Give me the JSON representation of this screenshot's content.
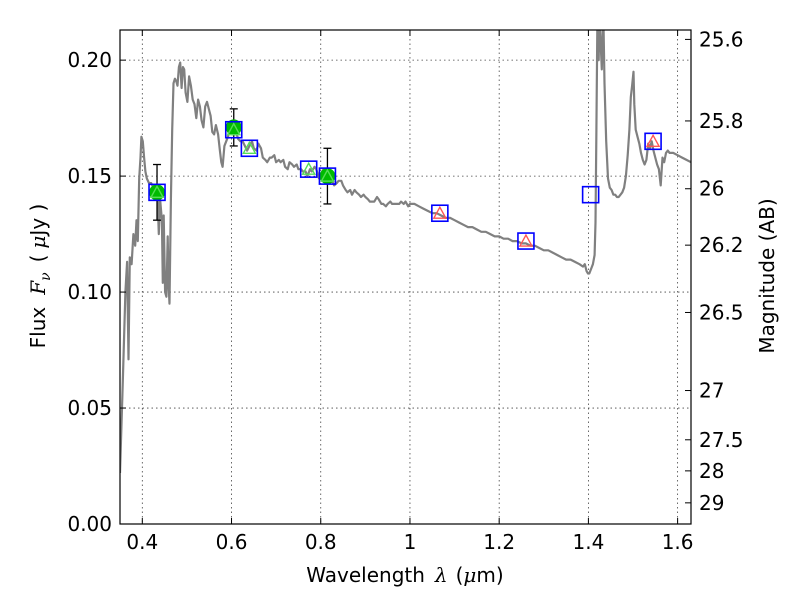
{
  "chart_data": {
    "type": "line",
    "xlabel_prefix": "Wavelength",
    "xlabel_symbol": "λ",
    "xlabel_unit_open": "(",
    "xlabel_unit_mu": "μ",
    "xlabel_unit_rest": "m)",
    "ylabel_prefix": "Flux",
    "ylabel_symbol": "F",
    "ylabel_subscript": "ν",
    "ylabel_unit_open": "(",
    "ylabel_unit_mu": "μ",
    "ylabel_unit_rest": "Jy )",
    "y2label": "Magnitude (AB)",
    "xlim": [
      0.35,
      1.63
    ],
    "ylim": [
      0.0,
      0.213
    ],
    "grid": true,
    "x_ticks": [
      {
        "value": 0.4,
        "label": "0.4"
      },
      {
        "value": 0.6,
        "label": "0.6"
      },
      {
        "value": 0.8,
        "label": "0.8"
      },
      {
        "value": 1.0,
        "label": "1"
      },
      {
        "value": 1.2,
        "label": "1.2"
      },
      {
        "value": 1.4,
        "label": "1.4"
      },
      {
        "value": 1.6,
        "label": "1.6"
      }
    ],
    "y_ticks": [
      {
        "value": 0.0,
        "label": "0.00"
      },
      {
        "value": 0.05,
        "label": "0.05"
      },
      {
        "value": 0.1,
        "label": "0.10"
      },
      {
        "value": 0.15,
        "label": "0.15"
      },
      {
        "value": 0.2,
        "label": "0.20"
      }
    ],
    "y2_ticks": [
      {
        "value": 25.6,
        "label": "25.6"
      },
      {
        "value": 25.8,
        "label": "25.8"
      },
      {
        "value": 26.0,
        "label": "26"
      },
      {
        "value": 26.2,
        "label": "26.2"
      },
      {
        "value": 26.5,
        "label": "26.5"
      },
      {
        "value": 27.0,
        "label": "27"
      },
      {
        "value": 27.5,
        "label": "27.5"
      },
      {
        "value": 28.0,
        "label": "28"
      },
      {
        "value": 29.0,
        "label": "29"
      }
    ],
    "colors": {
      "sed_line": "#808080",
      "observed": "#00bb00",
      "model_square": "#0000ff",
      "model_triangle_optical": "#55dd55",
      "model_triangle_nir": "#ff5555",
      "errorbar": "#000000",
      "grid": "#444444"
    },
    "sed": [
      [
        0.35,
        0.022
      ],
      [
        0.356,
        0.06
      ],
      [
        0.362,
        0.1
      ],
      [
        0.366,
        0.113
      ],
      [
        0.369,
        0.071
      ],
      [
        0.372,
        0.115
      ],
      [
        0.376,
        0.112
      ],
      [
        0.38,
        0.125
      ],
      [
        0.384,
        0.12
      ],
      [
        0.387,
        0.131
      ],
      [
        0.39,
        0.122
      ],
      [
        0.393,
        0.149
      ],
      [
        0.396,
        0.158
      ],
      [
        0.398,
        0.167
      ],
      [
        0.401,
        0.165
      ],
      [
        0.404,
        0.158
      ],
      [
        0.407,
        0.152
      ],
      [
        0.41,
        0.149
      ],
      [
        0.415,
        0.147
      ],
      [
        0.42,
        0.147
      ],
      [
        0.425,
        0.145
      ],
      [
        0.43,
        0.144
      ],
      [
        0.434,
        0.142
      ],
      [
        0.437,
        0.125
      ],
      [
        0.44,
        0.14
      ],
      [
        0.444,
        0.131
      ],
      [
        0.446,
        0.104
      ],
      [
        0.448,
        0.133
      ],
      [
        0.451,
        0.1
      ],
      [
        0.454,
        0.098
      ],
      [
        0.457,
        0.124
      ],
      [
        0.459,
        0.103
      ],
      [
        0.461,
        0.095
      ],
      [
        0.464,
        0.14
      ],
      [
        0.467,
        0.17
      ],
      [
        0.47,
        0.19
      ],
      [
        0.473,
        0.192
      ],
      [
        0.476,
        0.191
      ],
      [
        0.479,
        0.189
      ],
      [
        0.482,
        0.197
      ],
      [
        0.485,
        0.199
      ],
      [
        0.488,
        0.188
      ],
      [
        0.491,
        0.197
      ],
      [
        0.494,
        0.196
      ],
      [
        0.497,
        0.186
      ],
      [
        0.501,
        0.182
      ],
      [
        0.505,
        0.193
      ],
      [
        0.509,
        0.189
      ],
      [
        0.513,
        0.183
      ],
      [
        0.517,
        0.181
      ],
      [
        0.521,
        0.175
      ],
      [
        0.525,
        0.183
      ],
      [
        0.529,
        0.18
      ],
      [
        0.533,
        0.174
      ],
      [
        0.537,
        0.171
      ],
      [
        0.541,
        0.18
      ],
      [
        0.545,
        0.182
      ],
      [
        0.549,
        0.179
      ],
      [
        0.553,
        0.176
      ],
      [
        0.557,
        0.169
      ],
      [
        0.561,
        0.168
      ],
      [
        0.565,
        0.172
      ],
      [
        0.57,
        0.168
      ],
      [
        0.574,
        0.161
      ],
      [
        0.577,
        0.156
      ],
      [
        0.58,
        0.154
      ],
      [
        0.584,
        0.163
      ],
      [
        0.588,
        0.165
      ],
      [
        0.592,
        0.167
      ],
      [
        0.596,
        0.171
      ],
      [
        0.6,
        0.171
      ],
      [
        0.605,
        0.171
      ],
      [
        0.61,
        0.169
      ],
      [
        0.615,
        0.166
      ],
      [
        0.62,
        0.165
      ],
      [
        0.625,
        0.165
      ],
      [
        0.63,
        0.163
      ],
      [
        0.635,
        0.161
      ],
      [
        0.64,
        0.163
      ],
      [
        0.646,
        0.165
      ],
      [
        0.65,
        0.162
      ],
      [
        0.656,
        0.161
      ],
      [
        0.66,
        0.164
      ],
      [
        0.666,
        0.162
      ],
      [
        0.67,
        0.158
      ],
      [
        0.676,
        0.157
      ],
      [
        0.68,
        0.156
      ],
      [
        0.686,
        0.158
      ],
      [
        0.69,
        0.158
      ],
      [
        0.696,
        0.159
      ],
      [
        0.7,
        0.156
      ],
      [
        0.706,
        0.157
      ],
      [
        0.71,
        0.156
      ],
      [
        0.716,
        0.157
      ],
      [
        0.72,
        0.154
      ],
      [
        0.726,
        0.153
      ],
      [
        0.73,
        0.156
      ],
      [
        0.736,
        0.155
      ],
      [
        0.74,
        0.154
      ],
      [
        0.746,
        0.155
      ],
      [
        0.75,
        0.153
      ],
      [
        0.756,
        0.153
      ],
      [
        0.76,
        0.152
      ],
      [
        0.766,
        0.152
      ],
      [
        0.77,
        0.15
      ],
      [
        0.776,
        0.153
      ],
      [
        0.78,
        0.152
      ],
      [
        0.786,
        0.154
      ],
      [
        0.79,
        0.153
      ],
      [
        0.796,
        0.149
      ],
      [
        0.8,
        0.15
      ],
      [
        0.806,
        0.153
      ],
      [
        0.81,
        0.15
      ],
      [
        0.816,
        0.147
      ],
      [
        0.82,
        0.148
      ],
      [
        0.826,
        0.148
      ],
      [
        0.83,
        0.146
      ],
      [
        0.836,
        0.147
      ],
      [
        0.84,
        0.148
      ],
      [
        0.846,
        0.148
      ],
      [
        0.85,
        0.146
      ],
      [
        0.856,
        0.144
      ],
      [
        0.86,
        0.143
      ],
      [
        0.866,
        0.144
      ],
      [
        0.87,
        0.142
      ],
      [
        0.876,
        0.144
      ],
      [
        0.88,
        0.143
      ],
      [
        0.886,
        0.142
      ],
      [
        0.89,
        0.141
      ],
      [
        0.896,
        0.142
      ],
      [
        0.9,
        0.141
      ],
      [
        0.906,
        0.14
      ],
      [
        0.91,
        0.139
      ],
      [
        0.916,
        0.139
      ],
      [
        0.92,
        0.139
      ],
      [
        0.926,
        0.141
      ],
      [
        0.93,
        0.14
      ],
      [
        0.936,
        0.138
      ],
      [
        0.94,
        0.138
      ],
      [
        0.946,
        0.137
      ],
      [
        0.95,
        0.138
      ],
      [
        0.956,
        0.139
      ],
      [
        0.96,
        0.138
      ],
      [
        0.966,
        0.138
      ],
      [
        0.97,
        0.138
      ],
      [
        0.976,
        0.138
      ],
      [
        0.98,
        0.139
      ],
      [
        0.986,
        0.138
      ],
      [
        0.99,
        0.139
      ],
      [
        0.996,
        0.137
      ],
      [
        1.0,
        0.138
      ],
      [
        1.01,
        0.138
      ],
      [
        1.02,
        0.137
      ],
      [
        1.03,
        0.136
      ],
      [
        1.04,
        0.135
      ],
      [
        1.05,
        0.134
      ],
      [
        1.06,
        0.134
      ],
      [
        1.07,
        0.133
      ],
      [
        1.08,
        0.132
      ],
      [
        1.09,
        0.132
      ],
      [
        1.1,
        0.131
      ],
      [
        1.11,
        0.13
      ],
      [
        1.12,
        0.129
      ],
      [
        1.13,
        0.128
      ],
      [
        1.14,
        0.128
      ],
      [
        1.15,
        0.127
      ],
      [
        1.16,
        0.126
      ],
      [
        1.17,
        0.126
      ],
      [
        1.18,
        0.125
      ],
      [
        1.19,
        0.124
      ],
      [
        1.2,
        0.124
      ],
      [
        1.21,
        0.123
      ],
      [
        1.22,
        0.123
      ],
      [
        1.23,
        0.122
      ],
      [
        1.24,
        0.122
      ],
      [
        1.25,
        0.121
      ],
      [
        1.26,
        0.121
      ],
      [
        1.27,
        0.12
      ],
      [
        1.28,
        0.12
      ],
      [
        1.29,
        0.119
      ],
      [
        1.3,
        0.118
      ],
      [
        1.31,
        0.118
      ],
      [
        1.32,
        0.117
      ],
      [
        1.33,
        0.116
      ],
      [
        1.34,
        0.115
      ],
      [
        1.35,
        0.114
      ],
      [
        1.36,
        0.114
      ],
      [
        1.37,
        0.113
      ],
      [
        1.38,
        0.112
      ],
      [
        1.388,
        0.111
      ],
      [
        1.392,
        0.112
      ],
      [
        1.396,
        0.109
      ],
      [
        1.399,
        0.108
      ],
      [
        1.402,
        0.108
      ],
      [
        1.406,
        0.11
      ],
      [
        1.41,
        0.112
      ],
      [
        1.414,
        0.116
      ],
      [
        1.416,
        0.13
      ],
      [
        1.418,
        0.17
      ],
      [
        1.42,
        0.213
      ],
      [
        1.422,
        0.213
      ],
      [
        1.423,
        0.2
      ],
      [
        1.424,
        0.213
      ],
      [
        1.426,
        0.213
      ],
      [
        1.428,
        0.205
      ],
      [
        1.43,
        0.196
      ],
      [
        1.432,
        0.213
      ],
      [
        1.434,
        0.213
      ],
      [
        1.436,
        0.19
      ],
      [
        1.44,
        0.165
      ],
      [
        1.444,
        0.149
      ],
      [
        1.448,
        0.145
      ],
      [
        1.452,
        0.144
      ],
      [
        1.456,
        0.142
      ],
      [
        1.46,
        0.142
      ],
      [
        1.464,
        0.141
      ],
      [
        1.468,
        0.141
      ],
      [
        1.472,
        0.142
      ],
      [
        1.476,
        0.143
      ],
      [
        1.48,
        0.145
      ],
      [
        1.484,
        0.15
      ],
      [
        1.488,
        0.159
      ],
      [
        1.492,
        0.17
      ],
      [
        1.495,
        0.184
      ],
      [
        1.498,
        0.189
      ],
      [
        1.501,
        0.195
      ],
      [
        1.503,
        0.181
      ],
      [
        1.506,
        0.17
      ],
      [
        1.51,
        0.167
      ],
      [
        1.514,
        0.164
      ],
      [
        1.518,
        0.16
      ],
      [
        1.522,
        0.157
      ],
      [
        1.526,
        0.155
      ],
      [
        1.53,
        0.157
      ],
      [
        1.534,
        0.164
      ],
      [
        1.538,
        0.162
      ],
      [
        1.542,
        0.165
      ],
      [
        1.546,
        0.161
      ],
      [
        1.55,
        0.158
      ],
      [
        1.554,
        0.155
      ],
      [
        1.558,
        0.153
      ],
      [
        1.562,
        0.146
      ],
      [
        1.566,
        0.158
      ],
      [
        1.57,
        0.156
      ],
      [
        1.574,
        0.16
      ],
      [
        1.578,
        0.161
      ],
      [
        1.582,
        0.16
      ],
      [
        1.59,
        0.16
      ],
      [
        1.6,
        0.159
      ],
      [
        1.61,
        0.158
      ],
      [
        1.62,
        0.157
      ],
      [
        1.63,
        0.156
      ]
    ],
    "observed_points": [
      {
        "x": 0.433,
        "y": 0.143,
        "yerr": 0.012
      },
      {
        "x": 0.605,
        "y": 0.171,
        "yerr": 0.008
      },
      {
        "x": 0.815,
        "y": 0.15,
        "yerr": 0.012
      }
    ],
    "model_points": [
      {
        "x": 0.433,
        "y": 0.143,
        "marker": "triangle-optical"
      },
      {
        "x": 0.605,
        "y": 0.17,
        "marker": "triangle-optical"
      },
      {
        "x": 0.64,
        "y": 0.162,
        "marker": "triangle-optical"
      },
      {
        "x": 0.773,
        "y": 0.153,
        "marker": "triangle-optical"
      },
      {
        "x": 0.815,
        "y": 0.15,
        "marker": "triangle-optical"
      },
      {
        "x": 1.067,
        "y": 0.134,
        "marker": "triangle-nir"
      },
      {
        "x": 1.26,
        "y": 0.122,
        "marker": "triangle-nir"
      },
      {
        "x": 1.405,
        "y": 0.142,
        "marker": "none"
      },
      {
        "x": 1.545,
        "y": 0.165,
        "marker": "triangle-nir"
      }
    ]
  }
}
